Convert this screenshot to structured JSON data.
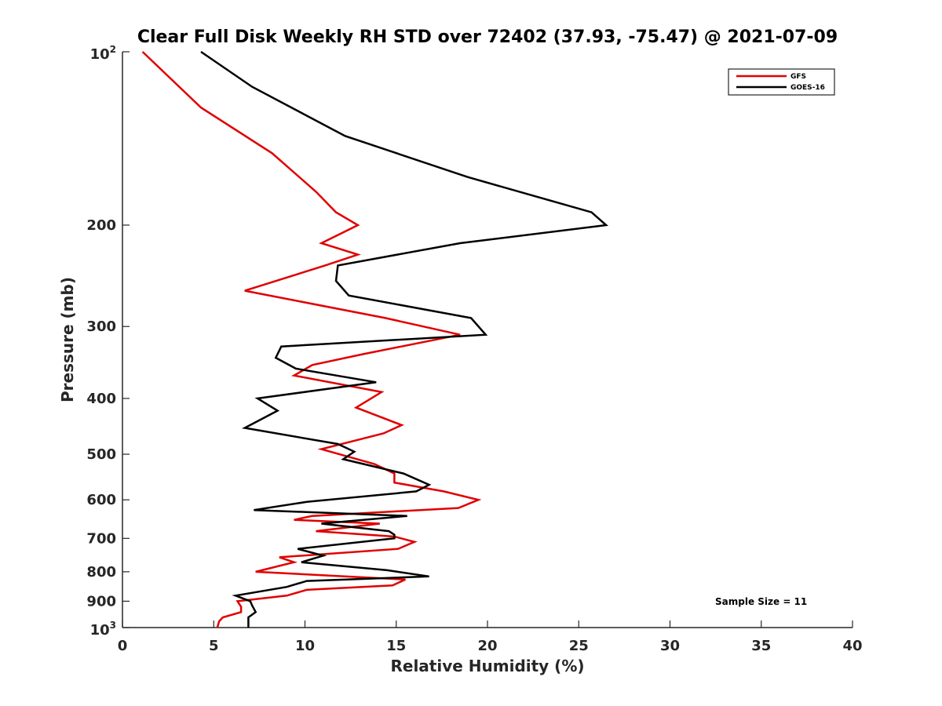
{
  "chart_data": {
    "type": "line",
    "title": "Clear Full Disk Weekly RH STD over 72402 (37.93, -75.47) @ 2021-07-09",
    "xlabel": "Relative Humidity (%)",
    "ylabel": "Pressure (mb)",
    "xlim": [
      0,
      40
    ],
    "ylim": [
      100,
      1000
    ],
    "yscale": "log",
    "yreversed": true,
    "x_ticks": [
      0,
      5,
      10,
      15,
      20,
      25,
      30,
      35,
      40
    ],
    "x_tick_labels": [
      "0",
      "5",
      "10",
      "15",
      "20",
      "25",
      "30",
      "35",
      "40"
    ],
    "y_ticks": [
      200,
      300,
      400,
      500,
      600,
      700,
      800,
      900
    ],
    "y_tick_labels": [
      "200",
      "300",
      "400",
      "500",
      "600",
      "700",
      "800",
      "900"
    ],
    "y_tick_top": {
      "base": "10",
      "exp": "2"
    },
    "y_tick_bottom": {
      "base": "10",
      "exp": "3"
    },
    "grid": false,
    "legend_position": "top-right",
    "annotation": "Sample Size = 11",
    "series": [
      {
        "name": "GFS",
        "color": "#e00000",
        "points": [
          [
            1.1,
            100
          ],
          [
            4.3,
            125
          ],
          [
            8.2,
            150
          ],
          [
            10.6,
            175
          ],
          [
            11.7,
            190
          ],
          [
            12.9,
            200
          ],
          [
            10.9,
            215
          ],
          [
            12.9,
            225
          ],
          [
            11.1,
            235
          ],
          [
            6.7,
            260
          ],
          [
            14.4,
            290
          ],
          [
            18.5,
            310
          ],
          [
            13.2,
            335
          ],
          [
            10.4,
            350
          ],
          [
            9.4,
            365
          ],
          [
            14.2,
            390
          ],
          [
            12.8,
            415
          ],
          [
            15.3,
            445
          ],
          [
            14.3,
            460
          ],
          [
            10.9,
            490
          ],
          [
            13.8,
            520
          ],
          [
            14.9,
            540
          ],
          [
            14.9,
            560
          ],
          [
            17.6,
            580
          ],
          [
            19.5,
            600
          ],
          [
            18.4,
            620
          ],
          [
            10.4,
            640
          ],
          [
            9.4,
            650
          ],
          [
            14.1,
            660
          ],
          [
            10.6,
            680
          ],
          [
            14.9,
            695
          ],
          [
            16.0,
            710
          ],
          [
            15.1,
            730
          ],
          [
            8.6,
            755
          ],
          [
            9.4,
            770
          ],
          [
            7.3,
            800
          ],
          [
            15.5,
            825
          ],
          [
            14.8,
            845
          ],
          [
            10.1,
            860
          ],
          [
            9.0,
            880
          ],
          [
            6.3,
            900
          ],
          [
            6.5,
            920
          ],
          [
            6.5,
            940
          ],
          [
            5.5,
            960
          ],
          [
            5.3,
            975
          ],
          [
            5.2,
            1000
          ]
        ]
      },
      {
        "name": "GOES-16",
        "color": "#000000",
        "points": [
          [
            4.3,
            100
          ],
          [
            7.1,
            115
          ],
          [
            12.2,
            140
          ],
          [
            18.9,
            165
          ],
          [
            25.7,
            190
          ],
          [
            26.5,
            200
          ],
          [
            18.5,
            215
          ],
          [
            11.8,
            235
          ],
          [
            11.7,
            250
          ],
          [
            12.4,
            265
          ],
          [
            19.1,
            290
          ],
          [
            19.9,
            310
          ],
          [
            8.7,
            325
          ],
          [
            8.4,
            340
          ],
          [
            9.5,
            355
          ],
          [
            13.9,
            375
          ],
          [
            7.4,
            400
          ],
          [
            8.5,
            420
          ],
          [
            6.7,
            450
          ],
          [
            11.8,
            480
          ],
          [
            12.7,
            495
          ],
          [
            12.1,
            510
          ],
          [
            15.4,
            540
          ],
          [
            16.8,
            565
          ],
          [
            16.1,
            580
          ],
          [
            10.1,
            605
          ],
          [
            7.2,
            625
          ],
          [
            15.6,
            640
          ],
          [
            10.9,
            660
          ],
          [
            14.6,
            680
          ],
          [
            14.9,
            690
          ],
          [
            14.9,
            700
          ],
          [
            9.6,
            730
          ],
          [
            11.0,
            750
          ],
          [
            9.8,
            770
          ],
          [
            14.5,
            795
          ],
          [
            16.8,
            815
          ],
          [
            10.1,
            830
          ],
          [
            9.0,
            850
          ],
          [
            6.2,
            880
          ],
          [
            7.0,
            900
          ],
          [
            7.1,
            915
          ],
          [
            7.3,
            940
          ],
          [
            6.9,
            960
          ],
          [
            6.9,
            1000
          ]
        ]
      }
    ]
  }
}
